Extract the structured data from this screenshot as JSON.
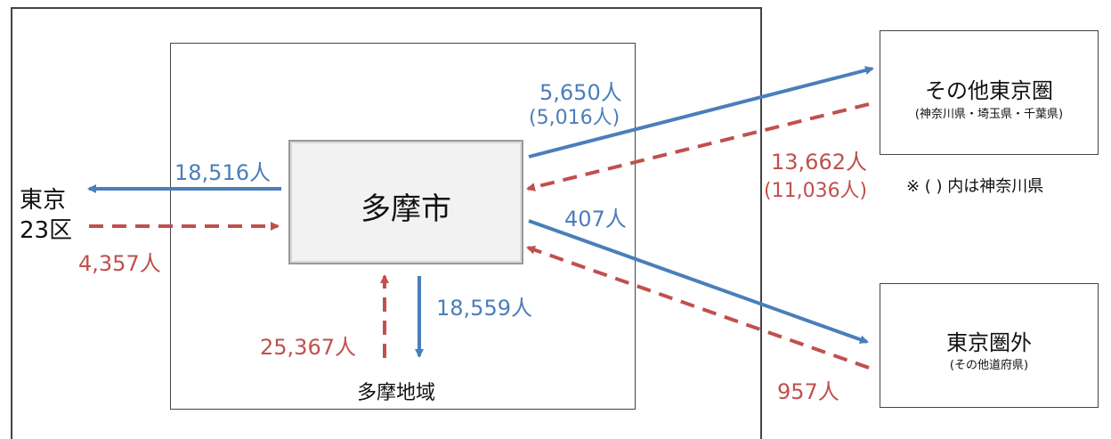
{
  "center": {
    "label": "多摩市"
  },
  "regions": {
    "tokyo23": {
      "line1": "東京",
      "line2": "23区"
    },
    "tama_area": {
      "label": "多摩地域"
    },
    "other_tokyo_area": {
      "label": "その他東京圏",
      "sub": "(神奈川県・埼玉県・千葉県)"
    },
    "outside_tokyo_area": {
      "label": "東京圏外",
      "sub": "(その他道府県)"
    }
  },
  "flows": {
    "to_tokyo23": "18,516人",
    "from_tokyo23": "4,357人",
    "to_tama_area": "18,559人",
    "from_tama_area": "25,367人",
    "to_other_tokyo_area": "5,650人",
    "to_other_tokyo_area_kanagawa": "(5,016人)",
    "from_other_tokyo_area": "13,662人",
    "from_other_tokyo_area_kanagawa": "(11,036人)",
    "to_outside_tokyo_area": "407人",
    "from_outside_tokyo_area": "957人"
  },
  "note": "※ ( ) 内は神奈川県",
  "colors": {
    "outflow": "#4a7ebb",
    "inflow": "#c0504d"
  }
}
